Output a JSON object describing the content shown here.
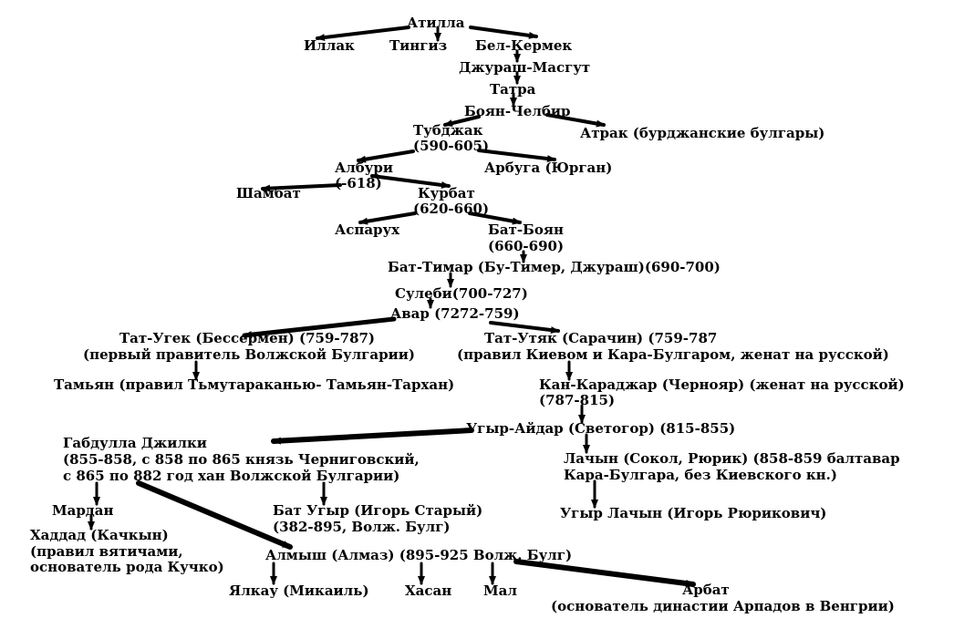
{
  "nodes": {
    "atilla": "Атилла",
    "illak": "Иллак",
    "tingiz": "Тингиз",
    "bel_kermek": "Бел-Кермек",
    "dzhurash_masgut": "Джураш-Масгут",
    "tatra": "Татра",
    "boyan_chelbir": "Боян-Челбир",
    "tubdzhak": "Тубджак",
    "tubdzhak_years": "(590-605)",
    "atrak": "Атрак (бурджанские булгары)",
    "alburi": "Албури",
    "alburi_years": "(-618)",
    "arbuga": "Арбуга (Юрган)",
    "shambat": "Шамбат",
    "kurbat": "Курбат",
    "kurbat_years": "(620-660)",
    "asparukh": "Аспарух",
    "bat_boyan": "Бат-Боян",
    "bat_boyan_years": "(660-690)",
    "bat_timar": "Бат-Тимар (Бу-Тимер, Джураш)(690-700)",
    "sulebi": "Сулеби(700-727)",
    "avar": "Авар (7272-759)",
    "tat_ugek": "Тат-Угек (Бессермен) (759-787)",
    "tat_ugek_note": "(первый правитель Волжской Булгарии)",
    "tat_utyak": "Тат-Утяк (Сарачин) (759-787",
    "tat_utyak_note": "(правил Киевом и Кара-Булгаром, женат на русской)",
    "tamyan": "Тамьян (правил Тьмутараканью- Тамьян-Тархан)",
    "kan_karadzhar": "Кан-Караджар (Чернояр) (женат на русской)",
    "kan_karadzhar_years": "(787-815)",
    "ugyr_aidar": "Угыр-Айдар (Светогор) (815-855)",
    "gabdulla": "Габдулла Джилки",
    "gabdulla_l2": "(855-858, с 858 по 865 князь Черниговский,",
    "gabdulla_l3": "с 865 по 882 год хан Волжской Булгарии)",
    "lachyn": "Лачын (Сокол, Рюрик) (858-859 балтавар",
    "lachyn_l2": "Кара-Булгара, без Киевского кн.)",
    "mardan": "Мардан",
    "bat_ugyr": "Бат Угыр (Игорь Старый)",
    "bat_ugyr_years": "(382-895, Волж. Булг)",
    "ugyr_lachyn": "Угыр Лачын (Игорь Рюрикович)",
    "khaddad": "Хаддад (Качкын)",
    "khaddad_l2": "(правил вятичами,",
    "khaddad_l3": "основатель рода Кучко)",
    "almysh": "Алмыш (Алмаз) (895-925 Волж. Булг)",
    "yalkau": "Ялкау (Микаиль)",
    "khasan": "Хасан",
    "mal": "Мал",
    "arbat": "Арбат",
    "arbat_note": "(основатель династии Арпадов в Венгрии)"
  },
  "colors": {
    "ink": "#000000",
    "background": "#ffffff"
  }
}
